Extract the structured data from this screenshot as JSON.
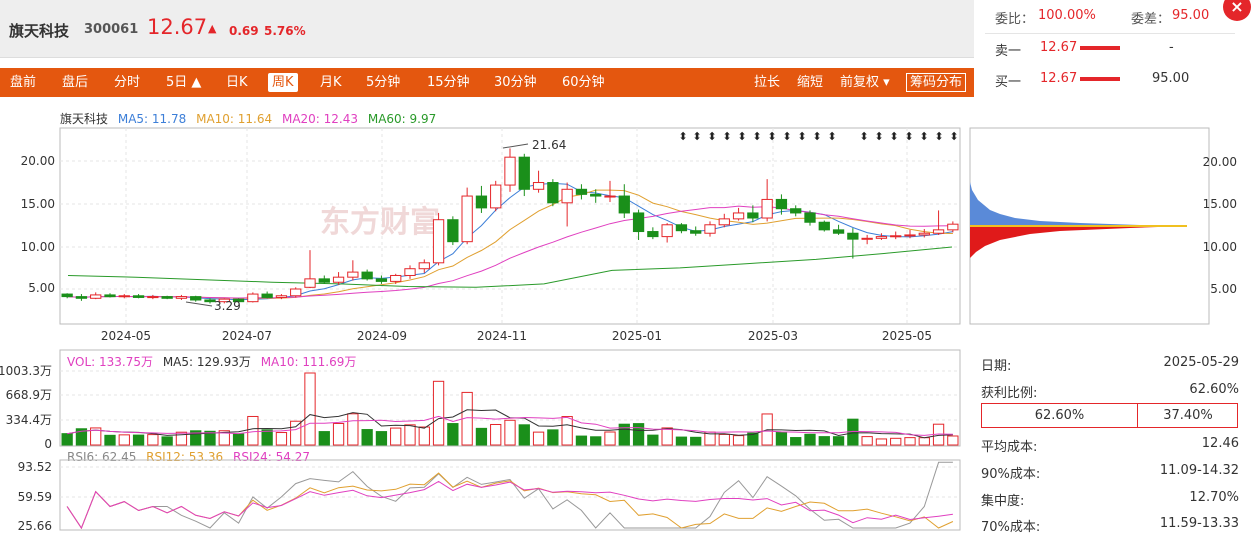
{
  "header": {
    "name": "旗天科技",
    "code": "300061",
    "price": "12.67",
    "arrow": "▲",
    "change": "0.69",
    "change_pct": "5.76%"
  },
  "toolbar": {
    "left_tabs": [
      "盘前",
      "盘后",
      "分时",
      "5日 ▲",
      "日K",
      "周K",
      "月K",
      "5分钟",
      "15分钟",
      "30分钟",
      "60分钟"
    ],
    "active_tab": "周K",
    "right_items": [
      "拉长",
      "缩短",
      "前复权 ▾",
      "筹码分布"
    ]
  },
  "order_panel": {
    "weibi_label": "委比：",
    "weibi_value": "100.00%",
    "weicha_label": "委差：",
    "weicha_value": "95.00",
    "sell1_label": "卖一",
    "sell1_price": "12.67",
    "sell1_vol": "-",
    "buy1_label": "买一",
    "buy1_price": "12.67",
    "buy1_vol": "95.00",
    "close_icon": "×"
  },
  "price_legend": {
    "name": "旗天科技",
    "ma5": "MA5: 11.78",
    "ma10": "MA10: 11.64",
    "ma20": "MA20: 12.43",
    "ma60": "MA60: 9.97"
  },
  "volume_legend": {
    "vol": "VOL: 133.75万",
    "ma5": "MA5: 129.93万",
    "ma10": "MA10: 111.69万"
  },
  "rsi_legend": {
    "rsi6": "RSI6: 62.45",
    "rsi12": "RSI12: 53.36",
    "rsi24": "RSI24: 54.27"
  },
  "colors": {
    "up": "#e4262a",
    "down": "#1a8f1a",
    "ma5": "#3d7fd8",
    "ma10": "#e0a030",
    "ma20": "#e040c0",
    "ma60": "#2a9a2a",
    "toolbar": "#e4570f"
  },
  "right_info": {
    "date_label": "日期:",
    "date_value": "2025-05-29",
    "profit_label": "获利比例:",
    "profit_value": "62.60%",
    "profit_left": "62.60%",
    "profit_right": "37.40%",
    "avg_cost_label": "平均成本:",
    "avg_cost_value": "12.46",
    "cost90_label": "90%成本:",
    "cost90_value": "11.09-14.32",
    "conc_label": "集中度:",
    "conc_value": "12.70%",
    "cost70_label": "70%成本:",
    "cost70_value": "11.59-13.33"
  },
  "chart_data": {
    "type": "candlestick",
    "x_tick_labels": [
      "2024-05",
      "2024-07",
      "2024-09",
      "2024-11",
      "2025-01",
      "2025-03",
      "2025-05"
    ],
    "y_tick_labels": [
      "20.00",
      "15.00",
      "10.00",
      "5.00"
    ],
    "max_label": "21.64",
    "min_label": "3.29",
    "watermark": "东方财富",
    "ohlc": [
      [
        4.4,
        4.5,
        3.9,
        4.1
      ],
      [
        4.1,
        4.4,
        3.6,
        3.9
      ],
      [
        3.9,
        4.6,
        3.8,
        4.3
      ],
      [
        4.3,
        4.5,
        4.0,
        4.1
      ],
      [
        4.1,
        4.4,
        3.9,
        4.2
      ],
      [
        4.2,
        4.4,
        3.9,
        4.0
      ],
      [
        4.0,
        4.3,
        3.8,
        4.1
      ],
      [
        4.1,
        4.2,
        3.8,
        3.9
      ],
      [
        3.9,
        4.3,
        3.7,
        4.1
      ],
      [
        4.1,
        4.2,
        3.5,
        3.7
      ],
      [
        3.7,
        3.9,
        3.29,
        3.5
      ],
      [
        3.5,
        3.9,
        3.3,
        3.8
      ],
      [
        3.8,
        3.9,
        3.4,
        3.5
      ],
      [
        3.5,
        4.6,
        3.4,
        4.4
      ],
      [
        4.4,
        4.7,
        3.9,
        4.0
      ],
      [
        4.0,
        4.4,
        3.8,
        4.2
      ],
      [
        4.2,
        5.2,
        4.0,
        5.0
      ],
      [
        5.2,
        9.6,
        5.1,
        6.2
      ],
      [
        6.2,
        6.6,
        5.6,
        5.8
      ],
      [
        5.8,
        7.0,
        5.5,
        6.4
      ],
      [
        6.4,
        8.4,
        6.0,
        7.0
      ],
      [
        7.0,
        7.3,
        6.0,
        6.2
      ],
      [
        6.2,
        6.6,
        5.6,
        5.9
      ],
      [
        5.9,
        6.8,
        5.6,
        6.6
      ],
      [
        6.6,
        7.8,
        6.2,
        7.4
      ],
      [
        7.4,
        8.5,
        6.9,
        8.1
      ],
      [
        8.1,
        14.0,
        7.8,
        13.2
      ],
      [
        13.2,
        13.6,
        10.2,
        10.6
      ],
      [
        10.6,
        17.0,
        10.3,
        16.0
      ],
      [
        16.0,
        17.2,
        14.0,
        14.6
      ],
      [
        14.6,
        17.8,
        14.2,
        17.3
      ],
      [
        17.3,
        21.64,
        16.5,
        20.6
      ],
      [
        20.6,
        21.0,
        16.0,
        16.8
      ],
      [
        16.8,
        19.0,
        16.4,
        17.6
      ],
      [
        17.6,
        18.0,
        14.8,
        15.2
      ],
      [
        15.2,
        17.6,
        12.4,
        16.8
      ],
      [
        16.8,
        17.4,
        15.6,
        16.2
      ],
      [
        16.2,
        16.8,
        15.2,
        16.0
      ],
      [
        16.0,
        17.8,
        15.3,
        16.0
      ],
      [
        16.0,
        17.4,
        13.4,
        14.0
      ],
      [
        14.0,
        14.4,
        10.8,
        11.8
      ],
      [
        11.8,
        12.3,
        10.9,
        11.2
      ],
      [
        11.2,
        12.8,
        10.5,
        12.6
      ],
      [
        12.6,
        12.8,
        11.6,
        11.9
      ],
      [
        11.9,
        12.4,
        11.3,
        11.6
      ],
      [
        11.6,
        13.0,
        11.2,
        12.6
      ],
      [
        12.6,
        13.9,
        12.3,
        13.3
      ],
      [
        13.3,
        14.6,
        13.1,
        14.0
      ],
      [
        14.0,
        14.9,
        12.9,
        13.4
      ],
      [
        13.4,
        18.0,
        13.0,
        15.6
      ],
      [
        15.6,
        16.2,
        13.8,
        14.5
      ],
      [
        14.5,
        14.9,
        13.6,
        14.0
      ],
      [
        14.0,
        14.3,
        12.5,
        12.9
      ],
      [
        12.9,
        13.1,
        11.8,
        12.0
      ],
      [
        12.0,
        12.6,
        11.4,
        11.6
      ],
      [
        11.6,
        12.2,
        8.6,
        10.9
      ],
      [
        10.9,
        11.4,
        10.3,
        11.0
      ],
      [
        11.0,
        11.6,
        10.8,
        11.2
      ],
      [
        11.2,
        11.8,
        10.9,
        11.3
      ],
      [
        11.3,
        12.0,
        11.0,
        11.4
      ],
      [
        11.4,
        12.1,
        11.1,
        11.6
      ],
      [
        11.6,
        14.3,
        11.4,
        12.0
      ],
      [
        12.0,
        13.0,
        11.7,
        12.67
      ]
    ],
    "ma60": [
      6.6,
      6.4,
      6.1,
      5.8,
      5.6,
      5.3,
      5.2,
      5.6,
      7.2,
      7.5,
      8.0,
      8.5,
      9.2,
      9.97
    ],
    "volume_axis_labels": [
      "1003.3万",
      "668.9万",
      "334.4万",
      "0"
    ],
    "rsi_axis_labels": [
      "93.52",
      "59.59",
      "25.66"
    ]
  }
}
